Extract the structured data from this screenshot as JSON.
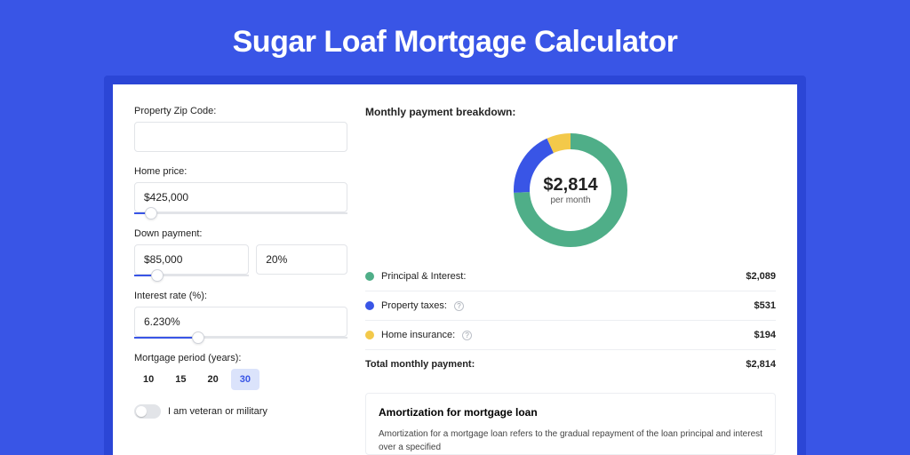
{
  "title": "Sugar Loaf Mortgage Calculator",
  "colors": {
    "page_bg": "#3955e6",
    "panel_wrap_bg": "#2b46d6",
    "panel_bg": "#ffffff",
    "text": "#222222",
    "muted": "#555555",
    "border": "#e2e4e8",
    "slider_fill": "#3955e6",
    "period_active_bg": "#dbe3fb",
    "period_active_text": "#3955e6"
  },
  "form": {
    "zip": {
      "label": "Property Zip Code:",
      "value": ""
    },
    "home_price": {
      "label": "Home price:",
      "value": "$425,000",
      "slider_pct": 8
    },
    "down_payment": {
      "label": "Down payment:",
      "amount_value": "$85,000",
      "pct_value": "20%",
      "slider_pct": 20
    },
    "interest_rate": {
      "label": "Interest rate (%):",
      "value": "6.230%",
      "slider_pct": 30
    },
    "period": {
      "label": "Mortgage period (years):",
      "options": [
        "10",
        "15",
        "20",
        "30"
      ],
      "active_index": 3
    },
    "veteran": {
      "label": "I am veteran or military",
      "checked": false
    }
  },
  "breakdown": {
    "title": "Monthly payment breakdown:",
    "donut": {
      "center_value": "$2,814",
      "center_sub": "per month",
      "segments": [
        {
          "label": "Principal & Interest:",
          "value": "$2,089",
          "pct": 74.2,
          "color": "#4fae88"
        },
        {
          "label": "Property taxes:",
          "value": "$531",
          "pct": 18.9,
          "color": "#3955e6",
          "info": true
        },
        {
          "label": "Home insurance:",
          "value": "$194",
          "pct": 6.9,
          "color": "#f3c94a",
          "info": true
        }
      ],
      "thickness": 18,
      "radius": 55,
      "bg": "#ffffff"
    },
    "total": {
      "label": "Total monthly payment:",
      "value": "$2,814"
    }
  },
  "amortization": {
    "title": "Amortization for mortgage loan",
    "text": "Amortization for a mortgage loan refers to the gradual repayment of the loan principal and interest over a specified"
  }
}
